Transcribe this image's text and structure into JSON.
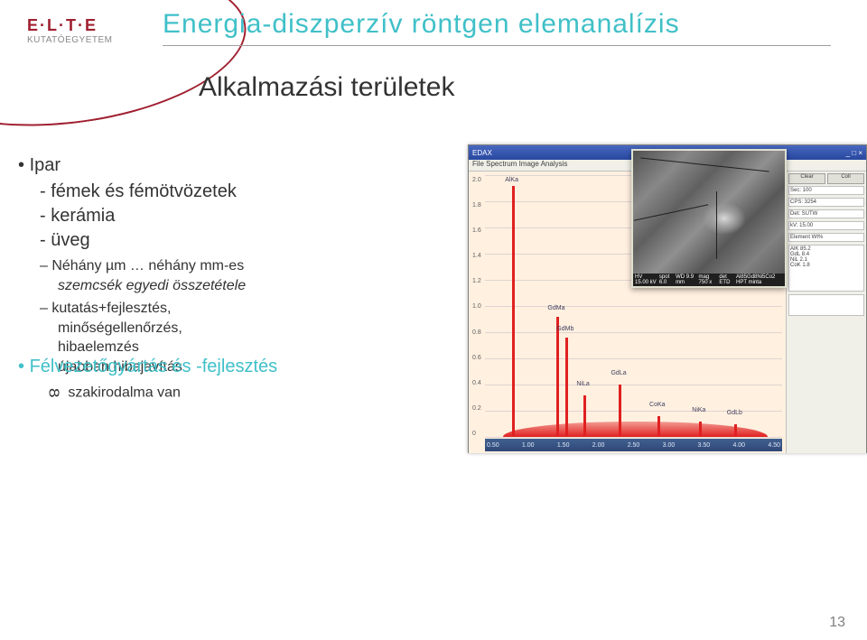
{
  "logo": {
    "title": "E·L·T·E",
    "sub": "KUTATÓEGYETEM"
  },
  "title": "Energia-diszperzív röntgen elemanalízis",
  "subtitle": "Alkalmazási területek",
  "section_ipar": {
    "head": "Ipar",
    "l1": "- fémek és fémötvözetek",
    "l2": "- kerámia",
    "l3": "- üveg",
    "d1a": "– Néhány µm … néhány mm-es",
    "d1b": "szemcsék egyedi összetétele",
    "d2a": "– kutatás+fejlesztés,",
    "d2b": "minőségellenőrzés,",
    "d2c": "hibaelemzés",
    "d2d": "újabban hibajavítás"
  },
  "section_felv": {
    "head": "Félvezetőgyártás és -fejlesztés",
    "inf_sym": "8",
    "inf_text": "szakirodalma van"
  },
  "screenshot": {
    "app_title": "EDAX",
    "menu": "File  Spectrum  Image  Analysis",
    "y_labels": [
      "2.0",
      "1.8",
      "1.6",
      "1.4",
      "1.2",
      "1.0",
      "0.8",
      "0.6",
      "0.4",
      "0.2",
      "0"
    ],
    "x_labels": [
      "0.50",
      "1.00",
      "1.50",
      "2.00",
      "2.50",
      "3.00",
      "3.50",
      "4.00",
      "4.50"
    ],
    "peaks": [
      {
        "pos_pct": 9,
        "h_pct": 96,
        "label": "AlKa",
        "label_bottom_pct": 97
      },
      {
        "pos_pct": 24,
        "h_pct": 46,
        "label": "GdMa",
        "label_bottom_pct": 48
      },
      {
        "pos_pct": 27,
        "h_pct": 38,
        "label": "GdMb",
        "label_bottom_pct": 40
      },
      {
        "pos_pct": 33,
        "h_pct": 16,
        "label": "NiLa",
        "label_bottom_pct": 19
      },
      {
        "pos_pct": 45,
        "h_pct": 20,
        "label": "GdLa",
        "label_bottom_pct": 23
      },
      {
        "pos_pct": 58,
        "h_pct": 8,
        "label": "CoKa",
        "label_bottom_pct": 11
      },
      {
        "pos_pct": 72,
        "h_pct": 6,
        "label": "NiKa",
        "label_bottom_pct": 9
      },
      {
        "pos_pct": 84,
        "h_pct": 5,
        "label": "GdLb",
        "label_bottom_pct": 8
      }
    ],
    "panel": {
      "sec": "Sec: 100",
      "cps": "CPS: 3254",
      "det": "Det: SUTW",
      "kv": "kV: 15.00",
      "btn1": "Clear",
      "btn2": "Coll",
      "elem_header": "Element   Wt%",
      "elems": [
        "AlK  85.2",
        "GdL  8.4",
        "NiL  2.1",
        "CoK  1.8"
      ]
    }
  },
  "sem": {
    "hv": "HV",
    "hv_v": "15.00 kV",
    "spot": "spot",
    "spot_v": "6.0",
    "wd": "WD",
    "wd_v": "9.9 mm",
    "mag": "mag",
    "mag_v": "750 x",
    "det": "det",
    "det_v": "ETD",
    "scale": "—— 50 µm ——",
    "sample": "Al85Gd8Ni5Co2 HPT minta"
  },
  "page_num": "13"
}
